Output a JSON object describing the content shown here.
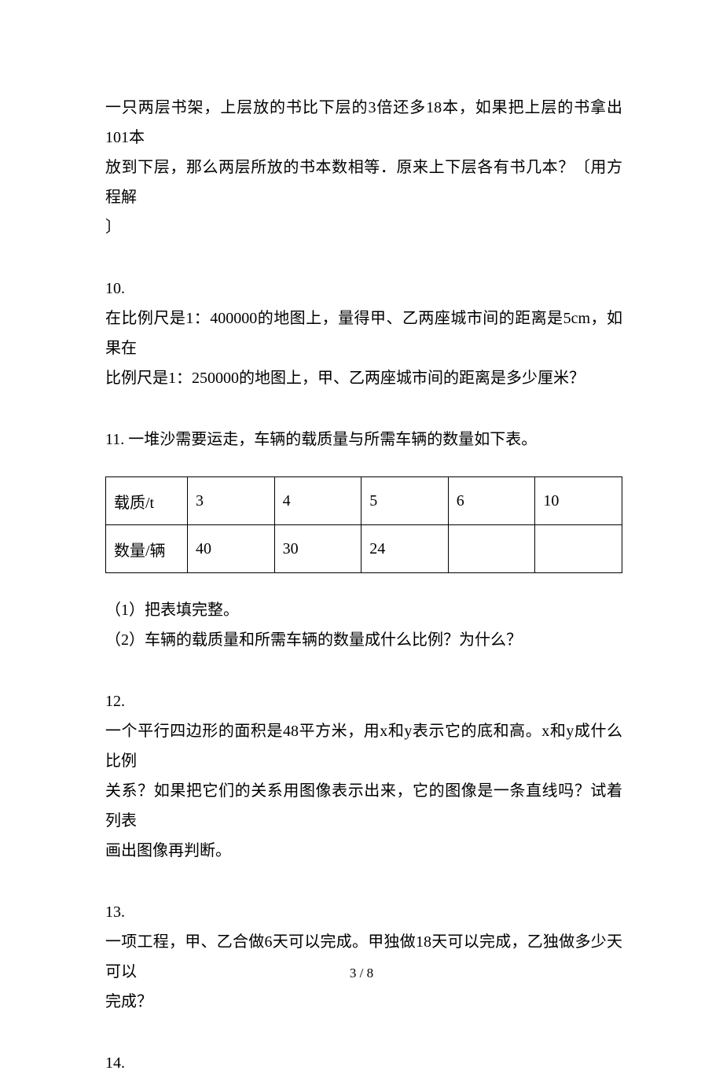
{
  "q9": {
    "text_l1": "一只两层书架，上层放的书比下层的3倍还多18本，如果把上层的书拿出101本",
    "text_l2": "放到下层，那么两层所放的书本数相等．原来上下层各有书几本？〔用方程解",
    "text_l3": "〕"
  },
  "q10": {
    "num": "10.",
    "text_l1": "在比例尺是1：400000的地图上，量得甲、乙两座城市间的距离是5cm，如果在",
    "text_l2": "比例尺是1：250000的地图上，甲、乙两座城市间的距离是多少厘米？"
  },
  "q11": {
    "num_and_intro": "11. 一堆沙需要运走，车辆的载质量与所需车辆的数量如下表。",
    "table": {
      "r1": [
        "载质/t",
        "3",
        "4",
        "5",
        "6",
        "10"
      ],
      "r2": [
        "数量/辆",
        "40",
        "30",
        "24",
        "",
        ""
      ]
    },
    "sub1": "（1）把表填完整。",
    "sub2": "（2）车辆的载质量和所需车辆的数量成什么比例？为什么？"
  },
  "q12": {
    "num": "12.",
    "text_l1": "一个平行四边形的面积是48平方米，用x和y表示它的底和高。x和y成什么比例",
    "text_l2": "关系？如果把它们的关系用图像表示出来，它的图像是一条直线吗？试着列表",
    "text_l3": "画出图像再判断。"
  },
  "q13": {
    "num": "13.",
    "text_l1": "一项工程，甲、乙合做6天可以完成。甲独做18天可以完成，乙独做多少天可以",
    "text_l2": "完成？"
  },
  "q14": {
    "num": "14."
  },
  "footer": "3 / 8"
}
